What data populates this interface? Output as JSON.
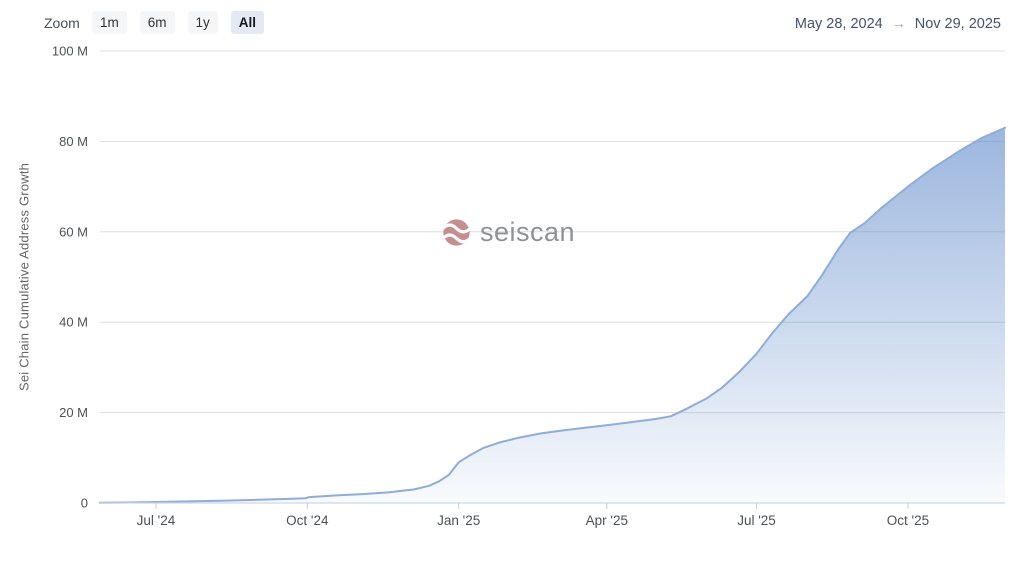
{
  "controls": {
    "zoom_label": "Zoom",
    "zoom_buttons": [
      {
        "label": "1m",
        "selected": false
      },
      {
        "label": "6m",
        "selected": false
      },
      {
        "label": "1y",
        "selected": false
      },
      {
        "label": "All",
        "selected": true
      }
    ],
    "range": {
      "from": "May 28, 2024",
      "arrow": "→",
      "to": "Nov 29, 2025"
    }
  },
  "watermark": {
    "text": "seiscan"
  },
  "colors": {
    "line": "#8fadd9",
    "fill_top": "rgba(90,134,200,0.72)",
    "fill_mid": "rgba(90,134,200,0.38)",
    "fill_bottom": "rgba(90,134,200,0.04)",
    "grid": "#dedede",
    "axis_line": "#ccd6e5",
    "tick": "#c8ced8",
    "axis_text": "#4d5156",
    "button_bg": "#f5f6f8",
    "selected_button_bg": "#e4e9f3",
    "date_text": "#44516e",
    "arrow": "#9aa2ac",
    "logo": "#c58f8f",
    "watermark_text": "#8f9295",
    "ytitle_text": "#666666"
  },
  "chart_data": {
    "type": "area",
    "title": "",
    "xlabel": "",
    "ylabel": "Sei Chain Cumulative Address Growth",
    "x_range": [
      "2024-05-28",
      "2025-11-29"
    ],
    "y_unit": "M",
    "ylim": [
      0,
      100
    ],
    "grid": true,
    "legend": false,
    "y_ticks": [
      {
        "value": 0,
        "label": "0"
      },
      {
        "value": 20,
        "label": "20 M"
      },
      {
        "value": 40,
        "label": "40 M"
      },
      {
        "value": 60,
        "label": "60 M"
      },
      {
        "value": 80,
        "label": "80 M"
      },
      {
        "value": 100,
        "label": "100 M"
      }
    ],
    "x_ticks": [
      {
        "date": "2024-07-01",
        "label": "Jul '24"
      },
      {
        "date": "2024-10-01",
        "label": "Oct '24"
      },
      {
        "date": "2025-01-01",
        "label": "Jan '25"
      },
      {
        "date": "2025-04-01",
        "label": "Apr '25"
      },
      {
        "date": "2025-07-01",
        "label": "Jul '25"
      },
      {
        "date": "2025-10-01",
        "label": "Oct '25"
      }
    ],
    "series": [
      {
        "name": "Sei Chain Cumulative Address Growth",
        "unit": "millions",
        "points": [
          [
            "2024-05-28",
            0.05
          ],
          [
            "2024-06-15",
            0.12
          ],
          [
            "2024-07-01",
            0.22
          ],
          [
            "2024-07-20",
            0.35
          ],
          [
            "2024-08-10",
            0.5
          ],
          [
            "2024-09-01",
            0.7
          ],
          [
            "2024-09-20",
            0.9
          ],
          [
            "2024-09-30",
            1.05
          ],
          [
            "2024-10-02",
            1.3
          ],
          [
            "2024-10-20",
            1.7
          ],
          [
            "2024-11-05",
            2.0
          ],
          [
            "2024-11-20",
            2.4
          ],
          [
            "2024-12-05",
            3.0
          ],
          [
            "2024-12-14",
            3.8
          ],
          [
            "2024-12-20",
            4.8
          ],
          [
            "2024-12-26",
            6.2
          ],
          [
            "2025-01-01",
            9.0
          ],
          [
            "2025-01-08",
            10.6
          ],
          [
            "2025-01-16",
            12.2
          ],
          [
            "2025-01-26",
            13.4
          ],
          [
            "2025-02-06",
            14.4
          ],
          [
            "2025-02-20",
            15.4
          ],
          [
            "2025-03-06",
            16.1
          ],
          [
            "2025-03-20",
            16.7
          ],
          [
            "2025-04-01",
            17.2
          ],
          [
            "2025-04-16",
            17.9
          ],
          [
            "2025-05-01",
            18.6
          ],
          [
            "2025-05-10",
            19.2
          ],
          [
            "2025-05-17",
            20.4
          ],
          [
            "2025-06-01",
            23.2
          ],
          [
            "2025-06-10",
            25.5
          ],
          [
            "2025-06-20",
            28.8
          ],
          [
            "2025-07-01",
            33.0
          ],
          [
            "2025-07-10",
            37.3
          ],
          [
            "2025-07-20",
            41.6
          ],
          [
            "2025-08-01",
            45.8
          ],
          [
            "2025-08-10",
            50.5
          ],
          [
            "2025-08-20",
            56.3
          ],
          [
            "2025-08-27",
            59.8
          ],
          [
            "2025-09-05",
            62.0
          ],
          [
            "2025-09-15",
            65.3
          ],
          [
            "2025-10-01",
            70.0
          ],
          [
            "2025-10-15",
            73.8
          ],
          [
            "2025-11-01",
            77.8
          ],
          [
            "2025-11-15",
            80.8
          ],
          [
            "2025-11-29",
            83.0
          ]
        ]
      }
    ]
  }
}
